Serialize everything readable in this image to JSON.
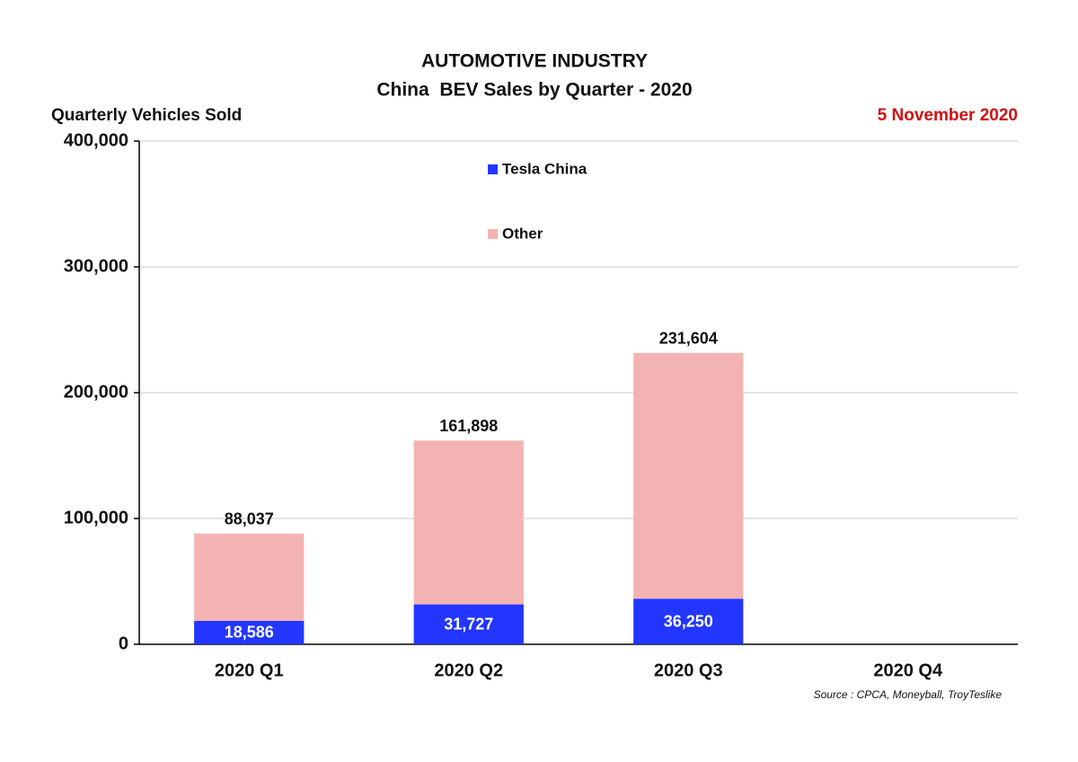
{
  "chart_data": {
    "type": "stacked-bar",
    "title": "AUTOMOTIVE INDUSTRY",
    "subtitle": "China  BEV Sales by Quarter - 2020",
    "y_label": "Quarterly Vehicles Sold",
    "date": "5 November 2020",
    "source": "Source : CPCA, Moneyball, TroyTeslike",
    "categories": [
      "2020 Q1",
      "2020 Q2",
      "2020 Q3",
      "2020 Q4"
    ],
    "series": [
      {
        "name": "Tesla China",
        "color": "#2236ff",
        "values": [
          18586,
          31727,
          36250,
          null
        ],
        "value_labels": [
          "18,586",
          "31,727",
          "36,250",
          null
        ]
      },
      {
        "name": "Other",
        "color": "#f4b3b3",
        "values": [
          69451,
          130171,
          195354,
          null
        ]
      }
    ],
    "totals": {
      "values": [
        88037,
        161898,
        231604,
        null
      ],
      "value_labels": [
        "88,037",
        "161,898",
        "231,604",
        null
      ]
    },
    "ylim": [
      0,
      400000
    ],
    "yticks": [
      0,
      {
        "value": 100000,
        "label": "100,000"
      },
      {
        "value": 200000,
        "label": "200,000"
      },
      {
        "value": 300000,
        "label": "300,000"
      },
      {
        "value": 400000,
        "label": "400,000"
      }
    ],
    "grid": true
  }
}
